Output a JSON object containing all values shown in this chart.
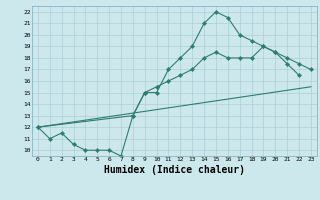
{
  "line1_x": [
    0,
    1,
    2,
    3,
    4,
    5,
    6,
    7,
    8,
    9,
    10,
    11,
    12,
    13,
    14,
    15,
    16,
    17,
    18,
    19,
    20,
    21,
    22
  ],
  "line1_y": [
    12,
    11,
    11.5,
    10.5,
    10,
    10,
    10,
    9.5,
    13,
    15,
    15,
    17,
    18,
    19,
    21,
    22,
    21.5,
    20,
    19.5,
    19,
    18.5,
    17.5,
    16.5
  ],
  "line2_x": [
    0,
    8,
    9,
    10,
    11,
    12,
    13,
    14,
    15,
    16,
    17,
    18,
    19,
    20,
    21,
    22,
    23
  ],
  "line2_y": [
    12,
    13,
    15,
    15.5,
    16,
    16.5,
    17,
    18,
    18.5,
    18,
    18,
    18,
    19,
    18.5,
    18,
    17.5,
    17
  ],
  "line3_x": [
    0,
    23
  ],
  "line3_y": [
    12,
    15.5
  ],
  "line_color": "#2E7D6E",
  "bg_color": "#cce8ed",
  "grid_color": "#aacfd6",
  "xlabel": "Humidex (Indice chaleur)",
  "xlabel_fontsize": 7,
  "xlim_min": -0.5,
  "xlim_max": 23.5,
  "ylim_min": 9.5,
  "ylim_max": 22.5,
  "yticks": [
    10,
    11,
    12,
    13,
    14,
    15,
    16,
    17,
    18,
    19,
    20,
    21,
    22
  ],
  "xticks": [
    0,
    1,
    2,
    3,
    4,
    5,
    6,
    7,
    8,
    9,
    10,
    11,
    12,
    13,
    14,
    15,
    16,
    17,
    18,
    19,
    20,
    21,
    22,
    23
  ]
}
